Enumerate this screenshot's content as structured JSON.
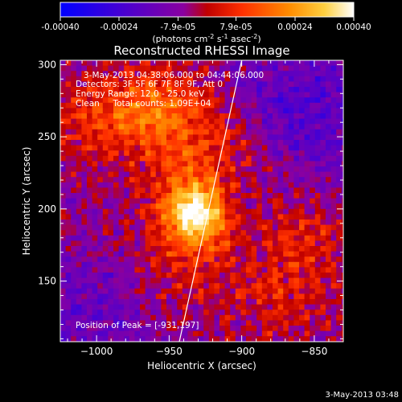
{
  "chart_data": {
    "type": "heatmap",
    "title": "Reconstructed RHESSI Image",
    "xlabel": "Heliocentric X (arcsec)",
    "ylabel": "Heliocentric Y (arcsec)",
    "xlim": [
      -1025,
      -830
    ],
    "ylim": [
      108,
      303
    ],
    "x_ticks": [
      -1000,
      -950,
      -900,
      -850
    ],
    "y_ticks": [
      150,
      200,
      250,
      300
    ],
    "colorbar": {
      "ticks": [
        {
          "value": -0.0004,
          "label": "-0.00040"
        },
        {
          "value": -0.00024,
          "label": "-0.00024"
        },
        {
          "value": -7.9e-05,
          "label": "-7.9e-05"
        },
        {
          "value": 7.9e-05,
          "label": "7.9e-05"
        },
        {
          "value": 0.00024,
          "label": "0.00024"
        },
        {
          "value": 0.0004,
          "label": "0.00040"
        }
      ],
      "range": [
        -0.0004,
        0.0004
      ],
      "units_main": "(photons cm",
      "units_exp1": "-2",
      "units_mid": " s",
      "units_exp2": "-1",
      "units_tail": " asec",
      "units_exp3": "-2",
      "units_end": ")"
    },
    "annotations": {
      "time_range": "3-May-2013 04:38:06.000 to 04:44:06.000",
      "detectors": "Detectors: 3F 5F 6F 7F 8F 9F, Att 0",
      "energy": "Energy Range: 12.0 - 25.0 keV",
      "clean": "Clean     Total counts: 1.09E+04",
      "peak": "Position of Peak = [-931,197]"
    },
    "peak": {
      "x": -931,
      "y": 197
    },
    "limb_line": [
      {
        "x": -943,
        "y": 108
      },
      {
        "x": -900,
        "y": 303
      }
    ],
    "timestamp": "3-May-2013 03:48"
  }
}
